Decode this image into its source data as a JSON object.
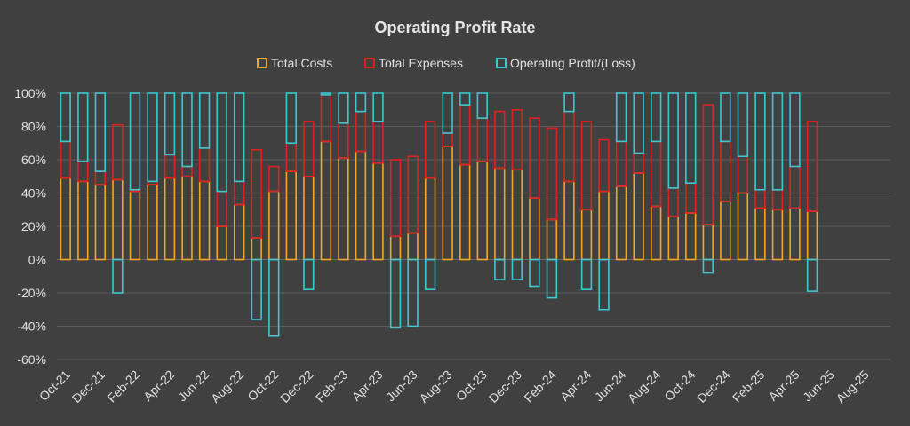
{
  "chart_data": {
    "type": "bar",
    "stacked": true,
    "title": "Operating Profit Rate",
    "xlabel": "",
    "ylabel": "",
    "ylim": [
      -60,
      100
    ],
    "yticks": [
      100,
      80,
      60,
      40,
      20,
      0,
      -20,
      -40,
      -60
    ],
    "ytick_labels": [
      "100%",
      "80%",
      "60%",
      "40%",
      "20%",
      "0%",
      "-20%",
      "-40%",
      "-60%"
    ],
    "xtick_labels": [
      "Oct-21",
      "Dec-21",
      "Feb-22",
      "Apr-22",
      "Jun-22",
      "Aug-22",
      "Oct-22",
      "Dec-22",
      "Feb-23",
      "Apr-23",
      "Jun-23",
      "Aug-23",
      "Oct-23",
      "Dec-23",
      "Feb-24",
      "Apr-24",
      "Jun-24",
      "Aug-24",
      "Oct-24",
      "Dec-24",
      "Feb-25",
      "Apr-25",
      "Jun-25",
      "Aug-25"
    ],
    "grid": true,
    "legend_position": "top",
    "categories": [
      "Oct-21",
      "Nov-21",
      "Dec-21",
      "Jan-22",
      "Feb-22",
      "Mar-22",
      "Apr-22",
      "May-22",
      "Jun-22",
      "Jul-22",
      "Aug-22",
      "Sep-22",
      "Oct-22",
      "Nov-22",
      "Dec-22",
      "Jan-23",
      "Feb-23",
      "Mar-23",
      "Apr-23",
      "May-23",
      "Jun-23",
      "Jul-23",
      "Aug-23",
      "Sep-23",
      "Oct-23",
      "Nov-23",
      "Dec-23",
      "Jan-24",
      "Feb-24",
      "Mar-24",
      "Apr-24",
      "May-24",
      "Jun-24",
      "Jul-24",
      "Aug-24",
      "Sep-24",
      "Oct-24",
      "Nov-24",
      "Dec-24",
      "Jan-25",
      "Feb-25",
      "Mar-25",
      "Apr-25",
      "May-25",
      "Jun-25",
      "Jul-25",
      "Aug-25",
      "Sep-25"
    ],
    "series": [
      {
        "name": "Total Costs",
        "color": "#f5a623",
        "values": [
          49,
          47,
          45,
          48,
          41,
          45,
          49,
          50,
          47,
          20,
          33,
          13,
          41,
          53,
          50,
          71,
          61,
          65,
          58,
          14,
          16,
          49,
          68,
          57,
          59,
          55,
          54,
          37,
          24,
          47,
          30,
          41,
          44,
          52,
          32,
          26,
          28,
          21,
          35,
          40,
          31,
          30,
          31,
          29,
          null,
          null,
          null,
          null
        ]
      },
      {
        "name": "Total Expenses",
        "color": "#e02020",
        "values": [
          22,
          12,
          8,
          33,
          1,
          2,
          14,
          6,
          20,
          21,
          14,
          53,
          15,
          17,
          33,
          28,
          21,
          24,
          25,
          46,
          46,
          34,
          8,
          36,
          26,
          34,
          36,
          48,
          55,
          42,
          53,
          31,
          27,
          12,
          39,
          17,
          18,
          72,
          36,
          22,
          11,
          12,
          25,
          54,
          null,
          null,
          null,
          null
        ]
      },
      {
        "name": "Operating Profit/(Loss)",
        "color": "#3cc8d0",
        "values": [
          29,
          41,
          47,
          -20,
          58,
          53,
          37,
          44,
          33,
          59,
          53,
          -36,
          -46,
          30,
          -18,
          1,
          18,
          11,
          17,
          -41,
          -40,
          -18,
          24,
          7,
          15,
          -12,
          -12,
          -16,
          -23,
          11,
          -18,
          -30,
          29,
          36,
          29,
          57,
          54,
          -8,
          29,
          38,
          58,
          58,
          44,
          -19,
          null,
          null,
          null,
          null
        ]
      }
    ]
  }
}
